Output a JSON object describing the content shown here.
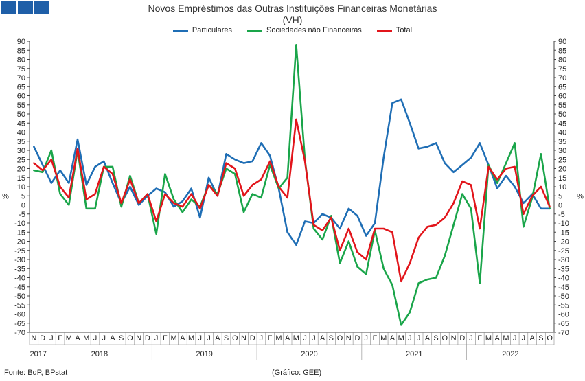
{
  "brand": {
    "logo_icon": "bpstat-logo-icon",
    "color": "#1f5fa8"
  },
  "chart_data": {
    "type": "line",
    "title": "Novos Empréstimos das Outras Instituições Financeiras Monetárias",
    "subtitle": "(VH)",
    "ylabel_left": "%",
    "ylabel_right": "%",
    "ylim": [
      -70,
      90
    ],
    "ytick_step": 5,
    "grid": false,
    "legend_position": "top-center",
    "month_labels": [
      "N",
      "D",
      "J",
      "F",
      "M",
      "A",
      "M",
      "J",
      "J",
      "A",
      "S",
      "O",
      "N",
      "D",
      "J",
      "F",
      "M",
      "A",
      "M",
      "J",
      "J",
      "A",
      "S",
      "O",
      "N",
      "D",
      "J",
      "F",
      "M",
      "A",
      "M",
      "J",
      "J",
      "A",
      "S",
      "O",
      "N",
      "D",
      "J",
      "F",
      "M",
      "A",
      "M",
      "J",
      "J",
      "A",
      "S",
      "O",
      "N",
      "D",
      "J",
      "F",
      "M",
      "A",
      "M",
      "J",
      "J",
      "A",
      "S",
      "O"
    ],
    "year_labels": [
      "2017",
      "2018",
      "2019",
      "2020",
      "2021",
      "2022"
    ],
    "series": [
      {
        "name": "Particulares",
        "color": "#1f6eb5",
        "values": [
          32,
          22,
          12,
          19,
          12,
          36,
          11,
          21,
          24,
          12,
          1,
          10,
          0,
          5,
          9,
          7,
          -1,
          2,
          9,
          -7,
          15,
          5,
          28,
          25,
          23,
          24,
          34,
          27,
          9,
          -15,
          -22,
          -9,
          -10,
          -5,
          -7,
          -13,
          -2,
          -6,
          -17,
          -10,
          26,
          56,
          58,
          45,
          31,
          32,
          34,
          23,
          18,
          22,
          26,
          34,
          22,
          9,
          16,
          10,
          1,
          6,
          -2,
          -2
        ]
      },
      {
        "name": "Sociedades não Financeiras",
        "color": "#1aa54a",
        "values": [
          19,
          18,
          30,
          6,
          0,
          30,
          -2,
          -2,
          21,
          21,
          -1,
          16,
          1,
          6,
          -16,
          17,
          3,
          -4,
          3,
          -1,
          11,
          6,
          20,
          17,
          -4,
          6,
          4,
          22,
          9,
          15,
          88,
          25,
          -13,
          -19,
          -6,
          -32,
          -20,
          -34,
          -38,
          -14,
          -35,
          -44,
          -66,
          -59,
          -43,
          -41,
          -40,
          -28,
          -11,
          6,
          -2,
          -43,
          22,
          12,
          23,
          34,
          -12,
          4,
          28,
          -2
        ]
      },
      {
        "name": "Total",
        "color": "#e2151b",
        "values": [
          23,
          19,
          25,
          10,
          4,
          31,
          3,
          6,
          21,
          17,
          1,
          14,
          1,
          6,
          -9,
          6,
          1,
          -1,
          6,
          -2,
          11,
          5,
          23,
          20,
          5,
          11,
          14,
          24,
          10,
          4,
          47,
          24,
          -11,
          -14,
          -7,
          -25,
          -13,
          -26,
          -30,
          -13,
          -13,
          -15,
          -42,
          -32,
          -18,
          -12,
          -11,
          -7,
          1,
          13,
          11,
          -13,
          21,
          14,
          20,
          21,
          -5,
          5,
          10,
          -1
        ]
      }
    ]
  },
  "footer": {
    "source": "Fonte: BdP, BPstat",
    "credit": "(Gráfico: GEE)"
  }
}
